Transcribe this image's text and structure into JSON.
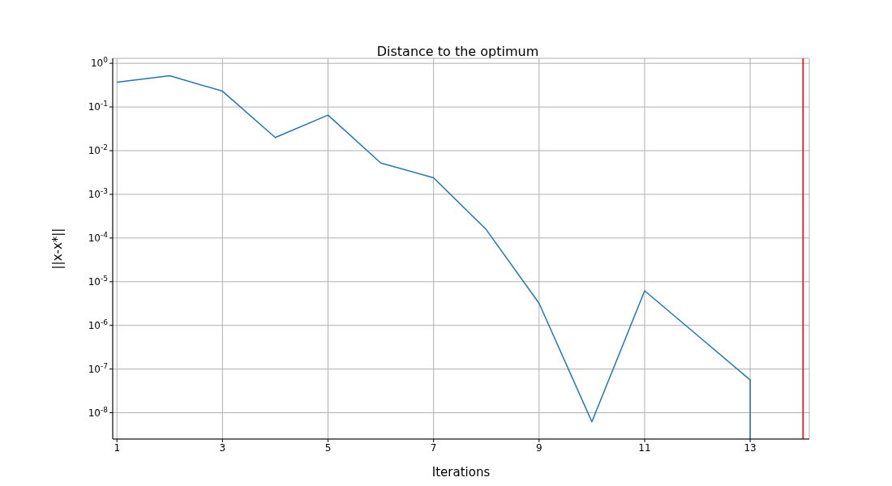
{
  "chart_data": {
    "type": "line",
    "title": "Distance to the optimum",
    "xlabel": "Iterations",
    "ylabel": "||x-x*||",
    "x": [
      1,
      2,
      3,
      4,
      5,
      6,
      7,
      8,
      9,
      10,
      11,
      12,
      13,
      13
    ],
    "series": [
      {
        "color": "#1f77b4",
        "values": [
          0.37,
          0.52,
          0.23,
          0.02,
          0.065,
          0.0052,
          0.0024,
          0.000155,
          3.2e-06,
          6.2e-09,
          6.2e-06,
          5.9e-07,
          5.6e-08,
          2.5e-09
        ]
      }
    ],
    "xlim": [
      0.92,
      14.12
    ],
    "xticks": [
      1,
      3,
      5,
      7,
      9,
      11,
      13
    ],
    "ylim": [
      2.5e-09,
      1.3
    ],
    "yticks": [
      {
        "value": 1e-08,
        "label": "10$^{-8}$"
      },
      {
        "value": 1e-07,
        "label": "10$^{-7}$"
      },
      {
        "value": 1e-06,
        "label": "10$^{-6}$"
      },
      {
        "value": 1e-05,
        "label": "10$^{-5}$"
      },
      {
        "value": 0.0001,
        "label": "10$^{-4}$"
      },
      {
        "value": 0.001,
        "label": "10$^{-3}$"
      },
      {
        "value": 0.01,
        "label": "10$^{-2}$"
      },
      {
        "value": 0.1,
        "label": "10$^{-1}$"
      },
      {
        "value": 1,
        "label": "10$^{0}$"
      }
    ],
    "log": "y",
    "grid": true,
    "ref_lines": [
      {
        "axis": "x",
        "value": 14,
        "color": "#ff0000"
      }
    ]
  }
}
